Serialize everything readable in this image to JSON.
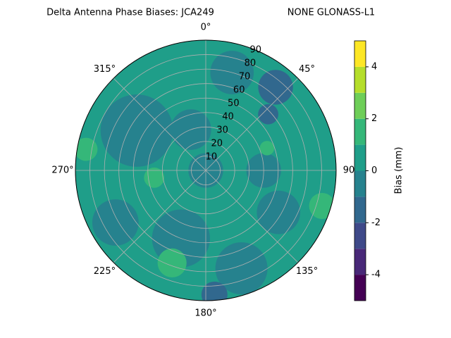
{
  "chart_data": {
    "type": "polar-contour",
    "title": "Delta Antenna Phase Biases: JCA249",
    "subtitle": "NONE GLONASS-L1",
    "xticks": [
      {
        "value": 0,
        "label": "0°"
      },
      {
        "value": 45,
        "label": "45°"
      },
      {
        "value": 90,
        "label": "90"
      },
      {
        "value": 135,
        "label": "135°"
      },
      {
        "value": 180,
        "label": "180°"
      },
      {
        "value": 225,
        "label": "225°"
      },
      {
        "value": 270,
        "label": "270°"
      },
      {
        "value": 315,
        "label": "315°"
      }
    ],
    "ylim": [
      0,
      90
    ],
    "yticks": [
      10,
      20,
      30,
      40,
      50,
      60,
      70,
      80,
      90
    ],
    "grid": true,
    "base_value": 0.5,
    "patches": [
      {
        "azimuth": 300,
        "zenith": 55,
        "extent": 25,
        "value": -0.5
      },
      {
        "azimuth": 200,
        "zenith": 50,
        "extent": 20,
        "value": -0.5
      },
      {
        "azimuth": 240,
        "zenith": 72,
        "extent": 16,
        "value": -0.5
      },
      {
        "azimuth": 340,
        "zenith": 30,
        "extent": 14,
        "value": -0.5
      },
      {
        "azimuth": 15,
        "zenith": 70,
        "extent": 15,
        "value": -0.5
      },
      {
        "azimuth": 160,
        "zenith": 72,
        "extent": 18,
        "value": -0.5
      },
      {
        "azimuth": 120,
        "zenith": 58,
        "extent": 15,
        "value": -0.5
      },
      {
        "azimuth": 90,
        "zenith": 40,
        "extent": 12,
        "value": -0.5
      },
      {
        "azimuth": 0,
        "zenith": 0,
        "extent": 12,
        "value": -0.5
      },
      {
        "azimuth": 40,
        "zenith": 75,
        "extent": 12,
        "value": -1.5
      },
      {
        "azimuth": 48,
        "zenith": 58,
        "extent": 7,
        "value": -1.5
      },
      {
        "azimuth": 176,
        "zenith": 86,
        "extent": 9,
        "value": -1.5
      },
      {
        "azimuth": 280,
        "zenith": 84,
        "extent": 8,
        "value": 1.5
      },
      {
        "azimuth": 70,
        "zenith": 45,
        "extent": 5,
        "value": 1.5
      },
      {
        "azimuth": 107,
        "zenith": 84,
        "extent": 9,
        "value": 1.5
      },
      {
        "azimuth": 262,
        "zenith": 36,
        "extent": 7,
        "value": 1.5
      },
      {
        "azimuth": 200,
        "zenith": 68,
        "extent": 10,
        "value": 1.5
      }
    ],
    "colorbar": {
      "label": "Bias (mm)",
      "levels": [
        -5,
        -4,
        -3,
        -2,
        -1,
        0,
        1,
        2,
        3,
        4,
        5
      ],
      "colors": [
        "#440154",
        "#482878",
        "#3e4989",
        "#31688e",
        "#26828e",
        "#1f9e89",
        "#35b779",
        "#6ece58",
        "#b5de2b",
        "#fde725"
      ],
      "ticks": [
        -4,
        -2,
        0,
        2,
        4
      ]
    }
  }
}
